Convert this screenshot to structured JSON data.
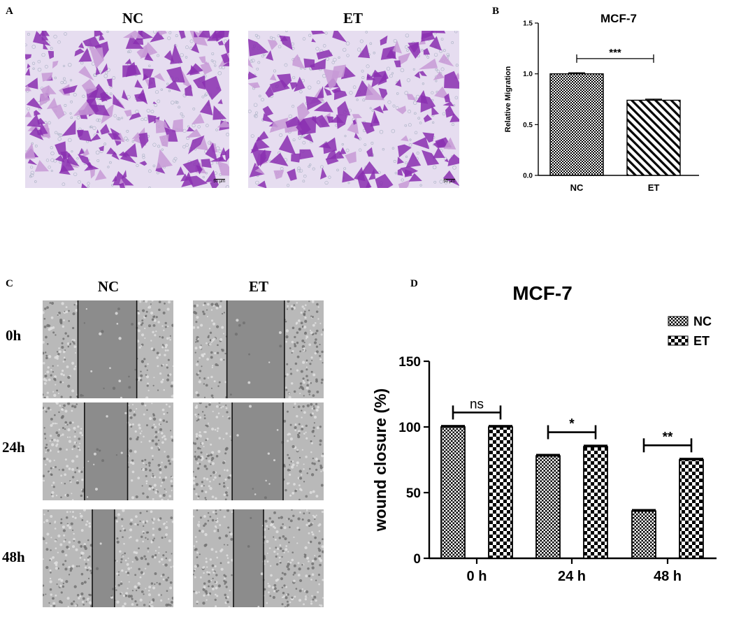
{
  "panels": {
    "A": {
      "label": "A",
      "titles": [
        "NC",
        "ET"
      ],
      "scale_labels": [
        "50 μm",
        "50 μm"
      ]
    },
    "C": {
      "label": "C",
      "titles": [
        "NC",
        "ET"
      ],
      "rows": [
        "0h",
        "24h",
        "48h"
      ]
    }
  },
  "colors": {
    "stain": "#8a2fb0",
    "stain_light": "#c79ad6",
    "background_micro": "#e6ddf0",
    "wound_gray": "#8c8c8c"
  },
  "chart_data": [
    {
      "panel_label": "B",
      "type": "bar",
      "title": "MCF-7",
      "ylabel": "Relative Migration",
      "xlabel": "",
      "categories": [
        "NC",
        "ET"
      ],
      "values": [
        1.0,
        0.74
      ],
      "errors": [
        0.01,
        0.01
      ],
      "patterns": [
        "checker",
        "diagonal"
      ],
      "ylim": [
        0,
        1.5
      ],
      "yticks": [
        "0.0",
        "0.5",
        "1.0",
        "1.5"
      ],
      "significance": [
        {
          "between": [
            "NC",
            "ET"
          ],
          "label": "***"
        }
      ],
      "grid": false
    },
    {
      "panel_label": "D",
      "type": "bar",
      "title": "MCF-7",
      "ylabel": "wound closure (%)",
      "xlabel": "",
      "categories": [
        "0 h",
        "24 h",
        "48 h"
      ],
      "series": [
        {
          "name": "NC",
          "values": [
            100,
            78,
            36
          ],
          "errors": [
            1.5,
            1.5,
            1.5
          ],
          "pattern": "checker-fine"
        },
        {
          "name": "ET",
          "values": [
            100,
            85,
            75
          ],
          "errors": [
            1.5,
            1.5,
            1.5
          ],
          "pattern": "checker-coarse"
        }
      ],
      "ylim": [
        0,
        150
      ],
      "yticks": [
        "0",
        "50",
        "100",
        "150"
      ],
      "significance": [
        {
          "category": "0 h",
          "label": "ns"
        },
        {
          "category": "24 h",
          "label": "*"
        },
        {
          "category": "48 h",
          "label": "**"
        }
      ],
      "legend_position": "top-right",
      "grid": false
    }
  ]
}
